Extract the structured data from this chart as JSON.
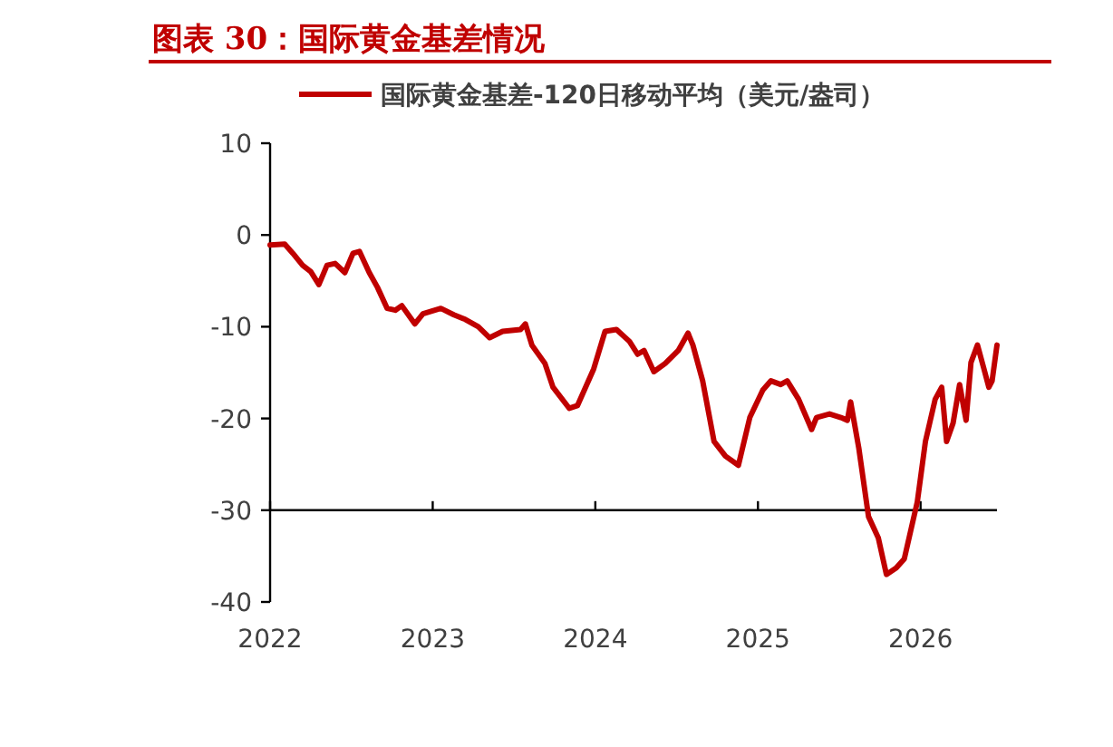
{
  "chart_data": {
    "type": "line",
    "title": "图表 30：国际黄金基差情况",
    "legend": "top",
    "xlim": [
      2022,
      2026.47
    ],
    "xticks": [
      2022,
      2023,
      2024,
      2025,
      2026
    ],
    "ylim": [
      -40,
      10
    ],
    "yticks": [
      -40,
      -30,
      -20,
      -10,
      0,
      10
    ],
    "ref_lines": [
      {
        "axis": "y",
        "value": -30,
        "color": "#000000"
      }
    ],
    "x": [
      2022.0,
      2022.09,
      2022.14,
      2022.2,
      2022.25,
      2022.3,
      2022.35,
      2022.4,
      2022.46,
      2022.51,
      2022.55,
      2022.61,
      2022.66,
      2022.72,
      2022.77,
      2022.81,
      2022.89,
      2022.94,
      2023.05,
      2023.13,
      2023.2,
      2023.28,
      2023.35,
      2023.43,
      2023.54,
      2023.57,
      2023.61,
      2023.69,
      2023.74,
      2023.84,
      2023.89,
      2023.99,
      2024.06,
      2024.13,
      2024.21,
      2024.26,
      2024.3,
      2024.36,
      2024.43,
      2024.51,
      2024.57,
      2024.6,
      2024.66,
      2024.73,
      2024.8,
      2024.88,
      2024.95,
      2025.03,
      2025.08,
      2025.14,
      2025.18,
      2025.25,
      2025.33,
      2025.36,
      2025.44,
      2025.51,
      2025.55,
      2025.57,
      2025.62,
      2025.68,
      2025.74,
      2025.79,
      2025.85,
      2025.9,
      2025.98,
      2026.03,
      2026.09,
      2026.13,
      2026.16,
      2026.2,
      2026.24,
      2026.28,
      2026.31,
      2026.35,
      2026.39,
      2026.42,
      2026.44,
      2026.47
    ],
    "series": [
      {
        "name": "国际黄金基差-120日移动平均（美元/盎司）",
        "color": "#c00000",
        "values": [
          -1.1,
          -1,
          -2,
          -3.3,
          -4,
          -5.4,
          -3.3,
          -3.1,
          -4.1,
          -2,
          -1.8,
          -4.1,
          -5.7,
          -8,
          -8.2,
          -7.7,
          -9.7,
          -8.6,
          -8,
          -8.7,
          -9.2,
          -10,
          -11.2,
          -10.5,
          -10.3,
          -9.7,
          -12,
          -14,
          -16.6,
          -18.9,
          -18.6,
          -14.6,
          -10.5,
          -10.3,
          -11.6,
          -13,
          -12.6,
          -14.9,
          -14,
          -12.6,
          -10.7,
          -12,
          -15.9,
          -22.5,
          -24.1,
          -25.1,
          -19.9,
          -16.9,
          -15.9,
          -16.3,
          -15.9,
          -17.9,
          -21.2,
          -19.9,
          -19.5,
          -19.9,
          -20.2,
          -18.2,
          -23.2,
          -30.7,
          -33,
          -37,
          -36.3,
          -35.3,
          -29.1,
          -22.5,
          -17.9,
          -16.6,
          -22.5,
          -20.5,
          -16.3,
          -20.2,
          -13.9,
          -12,
          -14.6,
          -16.6,
          -15.9,
          -12
        ]
      }
    ]
  }
}
